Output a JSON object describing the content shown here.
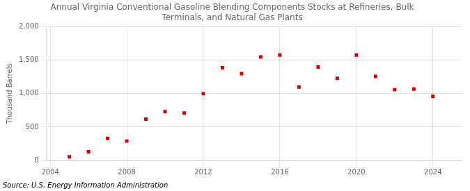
{
  "chart_data": {
    "type": "scatter",
    "title": "Annual Virginia Conventional Gasoline Blending Components Stocks at Refineries, Bulk\nTerminals, and Natural Gas Plants",
    "ylabel": "Thousand Barrels",
    "source": "Source: U.S. Energy Information Administration",
    "x": [
      2005,
      2006,
      2007,
      2008,
      2009,
      2010,
      2011,
      2012,
      2013,
      2014,
      2015,
      2016,
      2017,
      2018,
      2019,
      2020,
      2021,
      2022,
      2023,
      2024
    ],
    "values": [
      55,
      130,
      330,
      290,
      620,
      730,
      710,
      1000,
      1390,
      1300,
      1550,
      1580,
      1100,
      1400,
      1230,
      1580,
      1260,
      1060,
      1070,
      960
    ],
    "color": "#cc0000",
    "marker": "square",
    "xlim": [
      2003.8,
      2025.5
    ],
    "xticks": [
      2004,
      2008,
      2012,
      2016,
      2020,
      2024
    ],
    "ylim": [
      0,
      2000
    ],
    "yticks": [
      0,
      500,
      {
        "value": 1000,
        "label": "1,000"
      },
      {
        "value": 1500,
        "label": "1,500"
      },
      {
        "value": 2000,
        "label": "2,000"
      }
    ],
    "grid": true
  }
}
